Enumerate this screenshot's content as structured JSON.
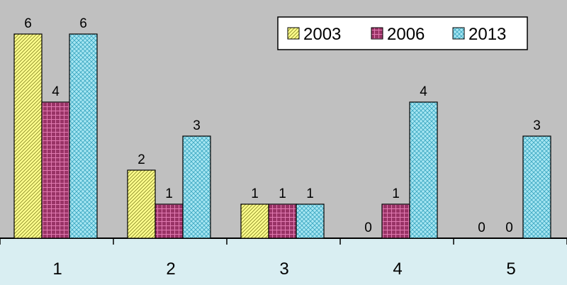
{
  "chart_data": {
    "type": "bar",
    "title": "",
    "xlabel": "",
    "ylabel": "",
    "categories": [
      "1",
      "2",
      "3",
      "4",
      "5"
    ],
    "series": [
      {
        "name": "2003",
        "values": [
          6,
          2,
          1,
          0,
          0
        ]
      },
      {
        "name": "2006",
        "values": [
          4,
          1,
          1,
          1,
          0
        ]
      },
      {
        "name": "2013",
        "values": [
          6,
          3,
          1,
          4,
          3
        ]
      }
    ],
    "ylim": [
      0,
      6
    ],
    "grid": false,
    "data_labels": true,
    "legend_position": "top-right",
    "colors": {
      "plot_background": "#c0c0c0",
      "axis_band": "#d9eef2",
      "series": [
        "#ffff8c",
        "#993366",
        "#a6e6f2"
      ],
      "pattern_lines": [
        "#8a8a2a",
        "#e07ab0",
        "#3aa6c0"
      ]
    }
  }
}
